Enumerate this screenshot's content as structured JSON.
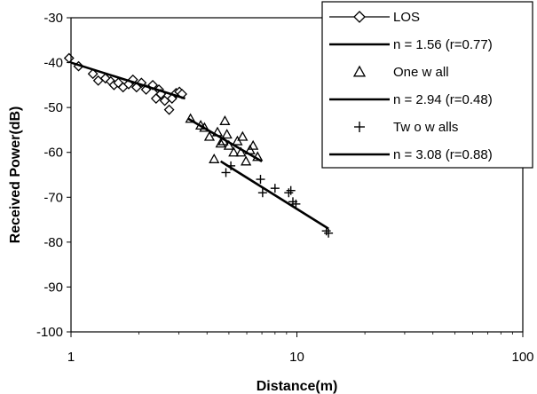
{
  "chart_data": {
    "type": "scatter",
    "xlabel": "Distance(m)",
    "ylabel": "Received Power(dB)",
    "xscale": "log",
    "xlim": [
      1,
      100
    ],
    "ylim": [
      -100,
      -30
    ],
    "x_ticks": [
      1,
      10,
      100
    ],
    "x_tick_labels": [
      "1",
      "10",
      "100"
    ],
    "y_ticks": [
      -30,
      -40,
      -50,
      -60,
      -70,
      -80,
      -90,
      -100
    ],
    "y_tick_labels": [
      "-30",
      "-40",
      "-50",
      "-60",
      "-70",
      "-80",
      "-90",
      "-100"
    ],
    "grid": false,
    "legend_position": "top-right",
    "series": [
      {
        "name": "LOS",
        "kind": "scatter",
        "marker": "diamond",
        "points": [
          [
            0.98,
            -39.0
          ],
          [
            1.08,
            -40.8
          ],
          [
            1.25,
            -42.5
          ],
          [
            1.32,
            -44.0
          ],
          [
            1.42,
            -43.5
          ],
          [
            1.5,
            -44.2
          ],
          [
            1.55,
            -45.0
          ],
          [
            1.62,
            -44.5
          ],
          [
            1.7,
            -45.5
          ],
          [
            1.8,
            -44.8
          ],
          [
            1.88,
            -43.8
          ],
          [
            1.95,
            -45.5
          ],
          [
            2.05,
            -44.5
          ],
          [
            2.15,
            -46.0
          ],
          [
            2.3,
            -45.0
          ],
          [
            2.38,
            -48.0
          ],
          [
            2.45,
            -46.0
          ],
          [
            2.5,
            -47.0
          ],
          [
            2.6,
            -48.5
          ],
          [
            2.72,
            -50.5
          ],
          [
            2.8,
            -48.0
          ],
          [
            2.92,
            -46.8
          ],
          [
            3.02,
            -46.5
          ],
          [
            3.1,
            -47.0
          ]
        ]
      },
      {
        "name": "n = 1.56 (r=0.77)",
        "kind": "fit",
        "points": [
          [
            1.0,
            -40.0
          ],
          [
            3.2,
            -48.0
          ]
        ]
      },
      {
        "name": "One w all",
        "kind": "scatter",
        "marker": "triangle",
        "points": [
          [
            3.38,
            -52.5
          ],
          [
            3.75,
            -54.0
          ],
          [
            3.9,
            -54.5
          ],
          [
            4.1,
            -56.5
          ],
          [
            4.3,
            -61.5
          ],
          [
            4.45,
            -55.5
          ],
          [
            4.6,
            -58.0
          ],
          [
            4.72,
            -57.5
          ],
          [
            4.8,
            -53.0
          ],
          [
            4.9,
            -56.0
          ],
          [
            5.0,
            -58.5
          ],
          [
            5.25,
            -60.0
          ],
          [
            5.45,
            -57.5
          ],
          [
            5.65,
            -60.0
          ],
          [
            5.75,
            -56.5
          ],
          [
            5.95,
            -62.0
          ],
          [
            6.2,
            -59.5
          ],
          [
            6.4,
            -58.5
          ],
          [
            6.7,
            -61.0
          ]
        ]
      },
      {
        "name": "n = 2.94 (r=0.48)",
        "kind": "fit",
        "points": [
          [
            3.3,
            -52.5
          ],
          [
            7.0,
            -62.0
          ]
        ]
      },
      {
        "name": "Tw o w alls",
        "kind": "scatter",
        "marker": "plus",
        "points": [
          [
            4.85,
            -64.5
          ],
          [
            5.1,
            -63.0
          ],
          [
            6.9,
            -66.0
          ],
          [
            7.05,
            -69.0
          ],
          [
            8.0,
            -68.0
          ],
          [
            9.2,
            -69.0
          ],
          [
            9.4,
            -68.5
          ],
          [
            9.6,
            -71.0
          ],
          [
            9.9,
            -71.5
          ],
          [
            13.5,
            -77.5
          ],
          [
            13.8,
            -78.0
          ]
        ]
      },
      {
        "name": "n = 3.08 (r=0.88)",
        "kind": "fit",
        "points": [
          [
            4.6,
            -62.0
          ],
          [
            13.8,
            -77.0
          ]
        ]
      }
    ]
  }
}
